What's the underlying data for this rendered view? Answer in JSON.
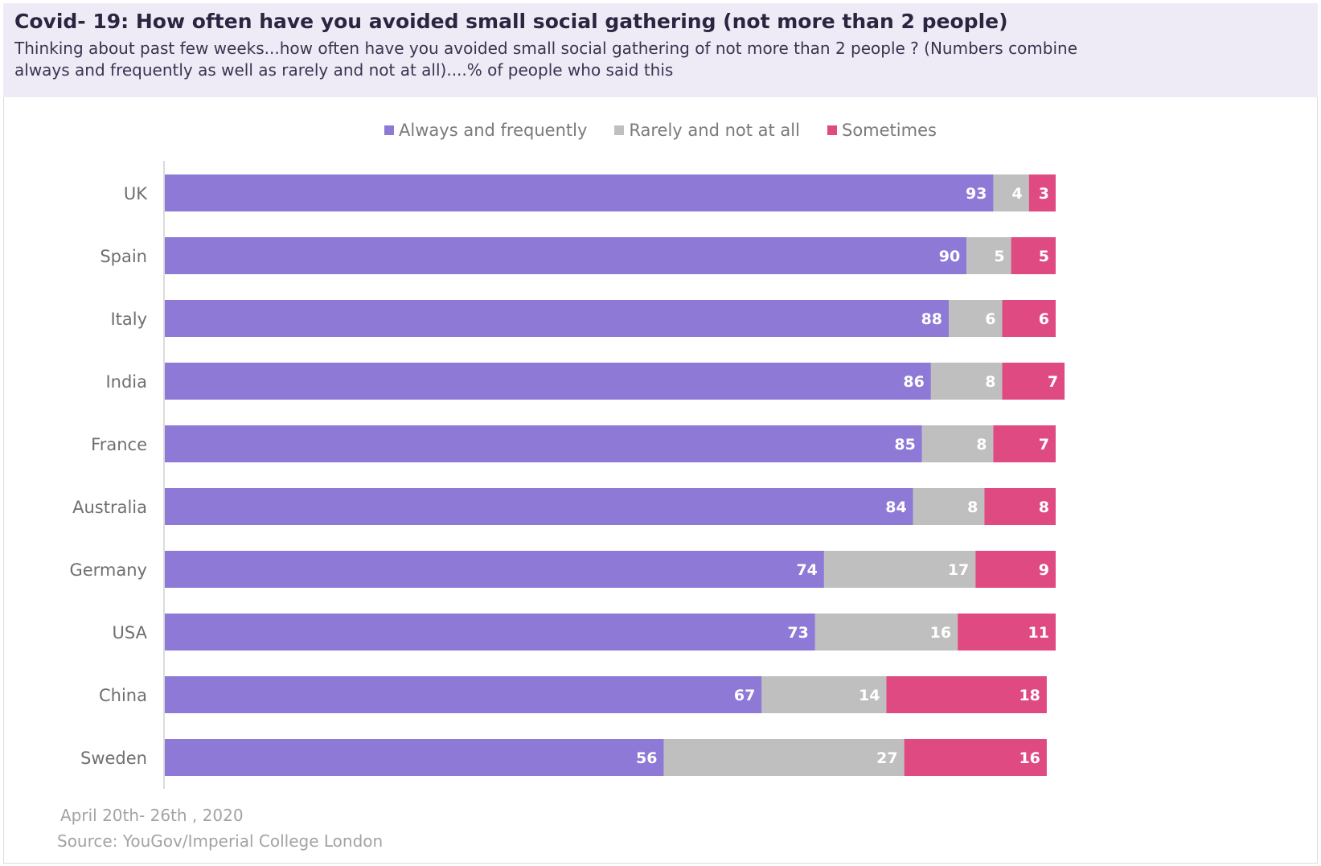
{
  "header": {
    "title": "Covid- 19: How often have you avoided small social gathering (not more than 2 people)",
    "subtitle": "Thinking about past few weeks...how often have you avoided small social gathering of not more than 2 people ? (Numbers combine\n always and frequently as well as rarely and not at all)....% of people who said this"
  },
  "footer": {
    "date": "April 20th- 26th , 2020",
    "source": "Source: YouGov/Imperial College London"
  },
  "chart_data": {
    "type": "bar",
    "orientation": "horizontal",
    "stacked": true,
    "categories": [
      "UK",
      "Spain",
      "Italy",
      "India",
      "France",
      "Australia",
      "Germany",
      "USA",
      "China",
      "Sweden"
    ],
    "series": [
      {
        "name": "Always and frequently",
        "color": "#8e79d6",
        "values": [
          93,
          90,
          88,
          86,
          85,
          84,
          74,
          73,
          67,
          56
        ]
      },
      {
        "name": "Rarely and not at all",
        "color": "#bfbfbf",
        "values": [
          4,
          5,
          6,
          8,
          8,
          8,
          17,
          16,
          14,
          27
        ]
      },
      {
        "name": "Sometimes",
        "color": "#df4a82",
        "values": [
          3,
          5,
          6,
          7,
          7,
          8,
          9,
          11,
          18,
          16
        ]
      }
    ],
    "legend_position": "top-center",
    "grid": false,
    "data_labels": true
  }
}
